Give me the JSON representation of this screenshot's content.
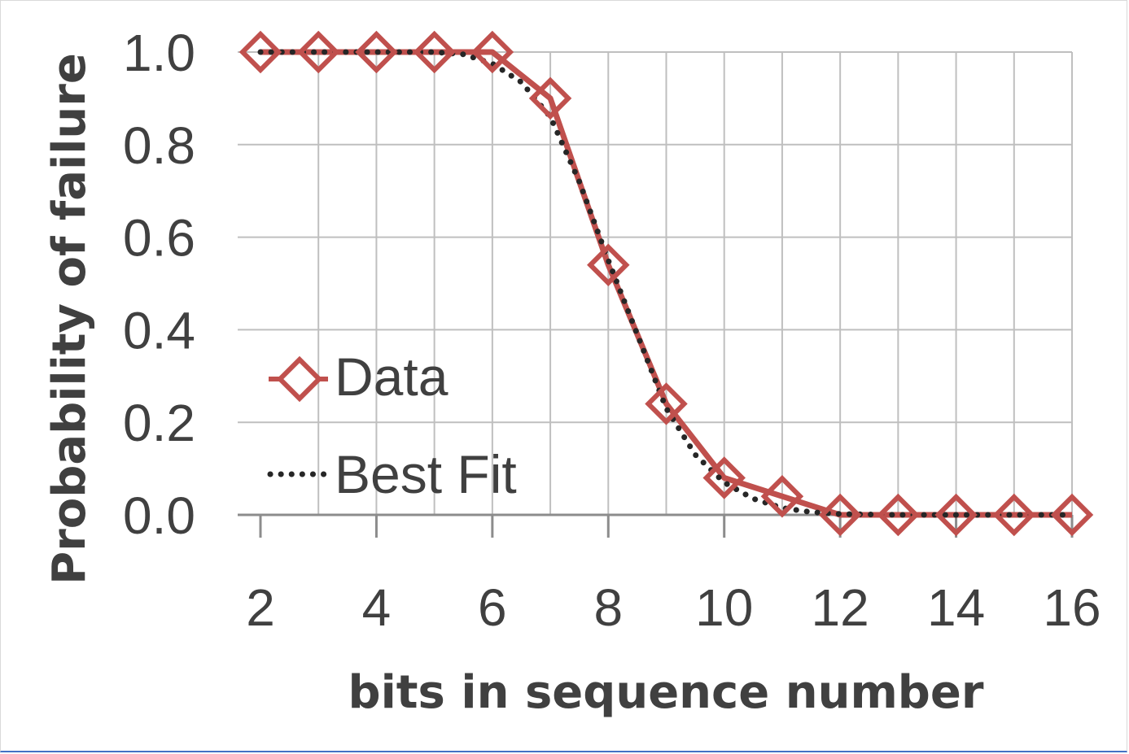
{
  "chart_data": {
    "type": "line",
    "title": "",
    "xlabel": "bits in sequence number",
    "ylabel": "Probability of failure",
    "xlim": [
      2,
      16
    ],
    "ylim": [
      0,
      1
    ],
    "x_ticks": [
      "2",
      "4",
      "6",
      "8",
      "10",
      "12",
      "14",
      "16"
    ],
    "y_ticks": [
      "0.0",
      "0.2",
      "0.4",
      "0.6",
      "0.8",
      "1.0"
    ],
    "grid": true,
    "legend_placement": "left-middle",
    "series": [
      {
        "name": "Data",
        "style": "solid-line-diamond-markers",
        "color": "#c0504d",
        "x": [
          2,
          3,
          4,
          5,
          6,
          7,
          8,
          9,
          10,
          11,
          12,
          13,
          14,
          15,
          16
        ],
        "y": [
          1.0,
          1.0,
          1.0,
          1.0,
          1.0,
          0.9,
          0.54,
          0.24,
          0.08,
          0.04,
          0.0,
          0.0,
          0.0,
          0.0,
          0.0
        ]
      },
      {
        "name": "Best Fit",
        "style": "dotted-line",
        "color": "#262626",
        "x": [
          2,
          3,
          4,
          5,
          5.5,
          6,
          6.5,
          7,
          7.5,
          8,
          8.5,
          9,
          9.5,
          10,
          10.5,
          11,
          11.5,
          12,
          13,
          14,
          15,
          16
        ],
        "y": [
          1.0,
          1.0,
          1.0,
          1.0,
          0.995,
          0.975,
          0.935,
          0.86,
          0.72,
          0.55,
          0.39,
          0.23,
          0.13,
          0.07,
          0.035,
          0.015,
          0.006,
          0.002,
          0.0,
          0.0,
          0.0,
          0.0
        ]
      }
    ]
  },
  "legend": {
    "data_label": "Data",
    "fit_label": "Best Fit"
  },
  "colors": {
    "data_series": "#c0504d",
    "fit_series": "#262626",
    "gridline": "#bfbfbf",
    "axis": "#8c8c8c",
    "text": "#404040"
  }
}
